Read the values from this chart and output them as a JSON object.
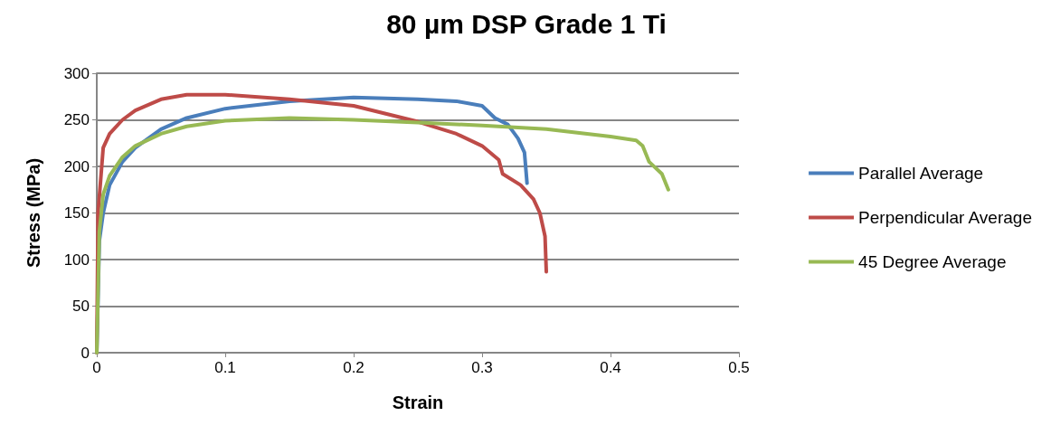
{
  "chart_data": {
    "type": "line",
    "title": "80 µm DSP Grade 1 Ti",
    "xlabel": "Strain",
    "ylabel": "Stress (MPa)",
    "xlim": [
      0,
      0.5
    ],
    "xticks": [
      0,
      0.1,
      0.2,
      0.3,
      0.4,
      0.5
    ],
    "ylim": [
      0,
      300
    ],
    "yticks": [
      0,
      50,
      100,
      150,
      200,
      250,
      300
    ],
    "grid": "y",
    "legend": "right",
    "marker": "none",
    "line_style": "solid",
    "series": [
      {
        "name": "Parallel Average",
        "color": "#4a7ebb",
        "x": [
          0,
          0.002,
          0.005,
          0.01,
          0.02,
          0.03,
          0.05,
          0.07,
          0.1,
          0.15,
          0.2,
          0.25,
          0.28,
          0.3,
          0.31,
          0.32,
          0.328,
          0.333,
          0.335
        ],
        "values": [
          0,
          120,
          150,
          180,
          205,
          220,
          240,
          252,
          262,
          270,
          274,
          272,
          270,
          265,
          252,
          245,
          230,
          215,
          182
        ]
      },
      {
        "name": "Perpendicular Average",
        "color": "#be4b48",
        "x": [
          0,
          0.001,
          0.005,
          0.01,
          0.02,
          0.03,
          0.05,
          0.07,
          0.1,
          0.15,
          0.2,
          0.25,
          0.28,
          0.3,
          0.313,
          0.316,
          0.33,
          0.34,
          0.345,
          0.349,
          0.35
        ],
        "values": [
          0,
          150,
          220,
          235,
          250,
          260,
          272,
          277,
          277,
          272,
          265,
          248,
          235,
          222,
          207,
          192,
          180,
          165,
          150,
          125,
          87
        ]
      },
      {
        "name": "45 Degree Average",
        "color": "#98b954",
        "x": [
          0,
          0.002,
          0.005,
          0.01,
          0.02,
          0.03,
          0.05,
          0.07,
          0.1,
          0.15,
          0.2,
          0.25,
          0.3,
          0.35,
          0.4,
          0.42,
          0.425,
          0.43,
          0.44,
          0.445
        ],
        "values": [
          0,
          130,
          170,
          190,
          210,
          222,
          235,
          243,
          249,
          252,
          250,
          247,
          244,
          240,
          232,
          228,
          222,
          205,
          192,
          175
        ]
      }
    ]
  }
}
